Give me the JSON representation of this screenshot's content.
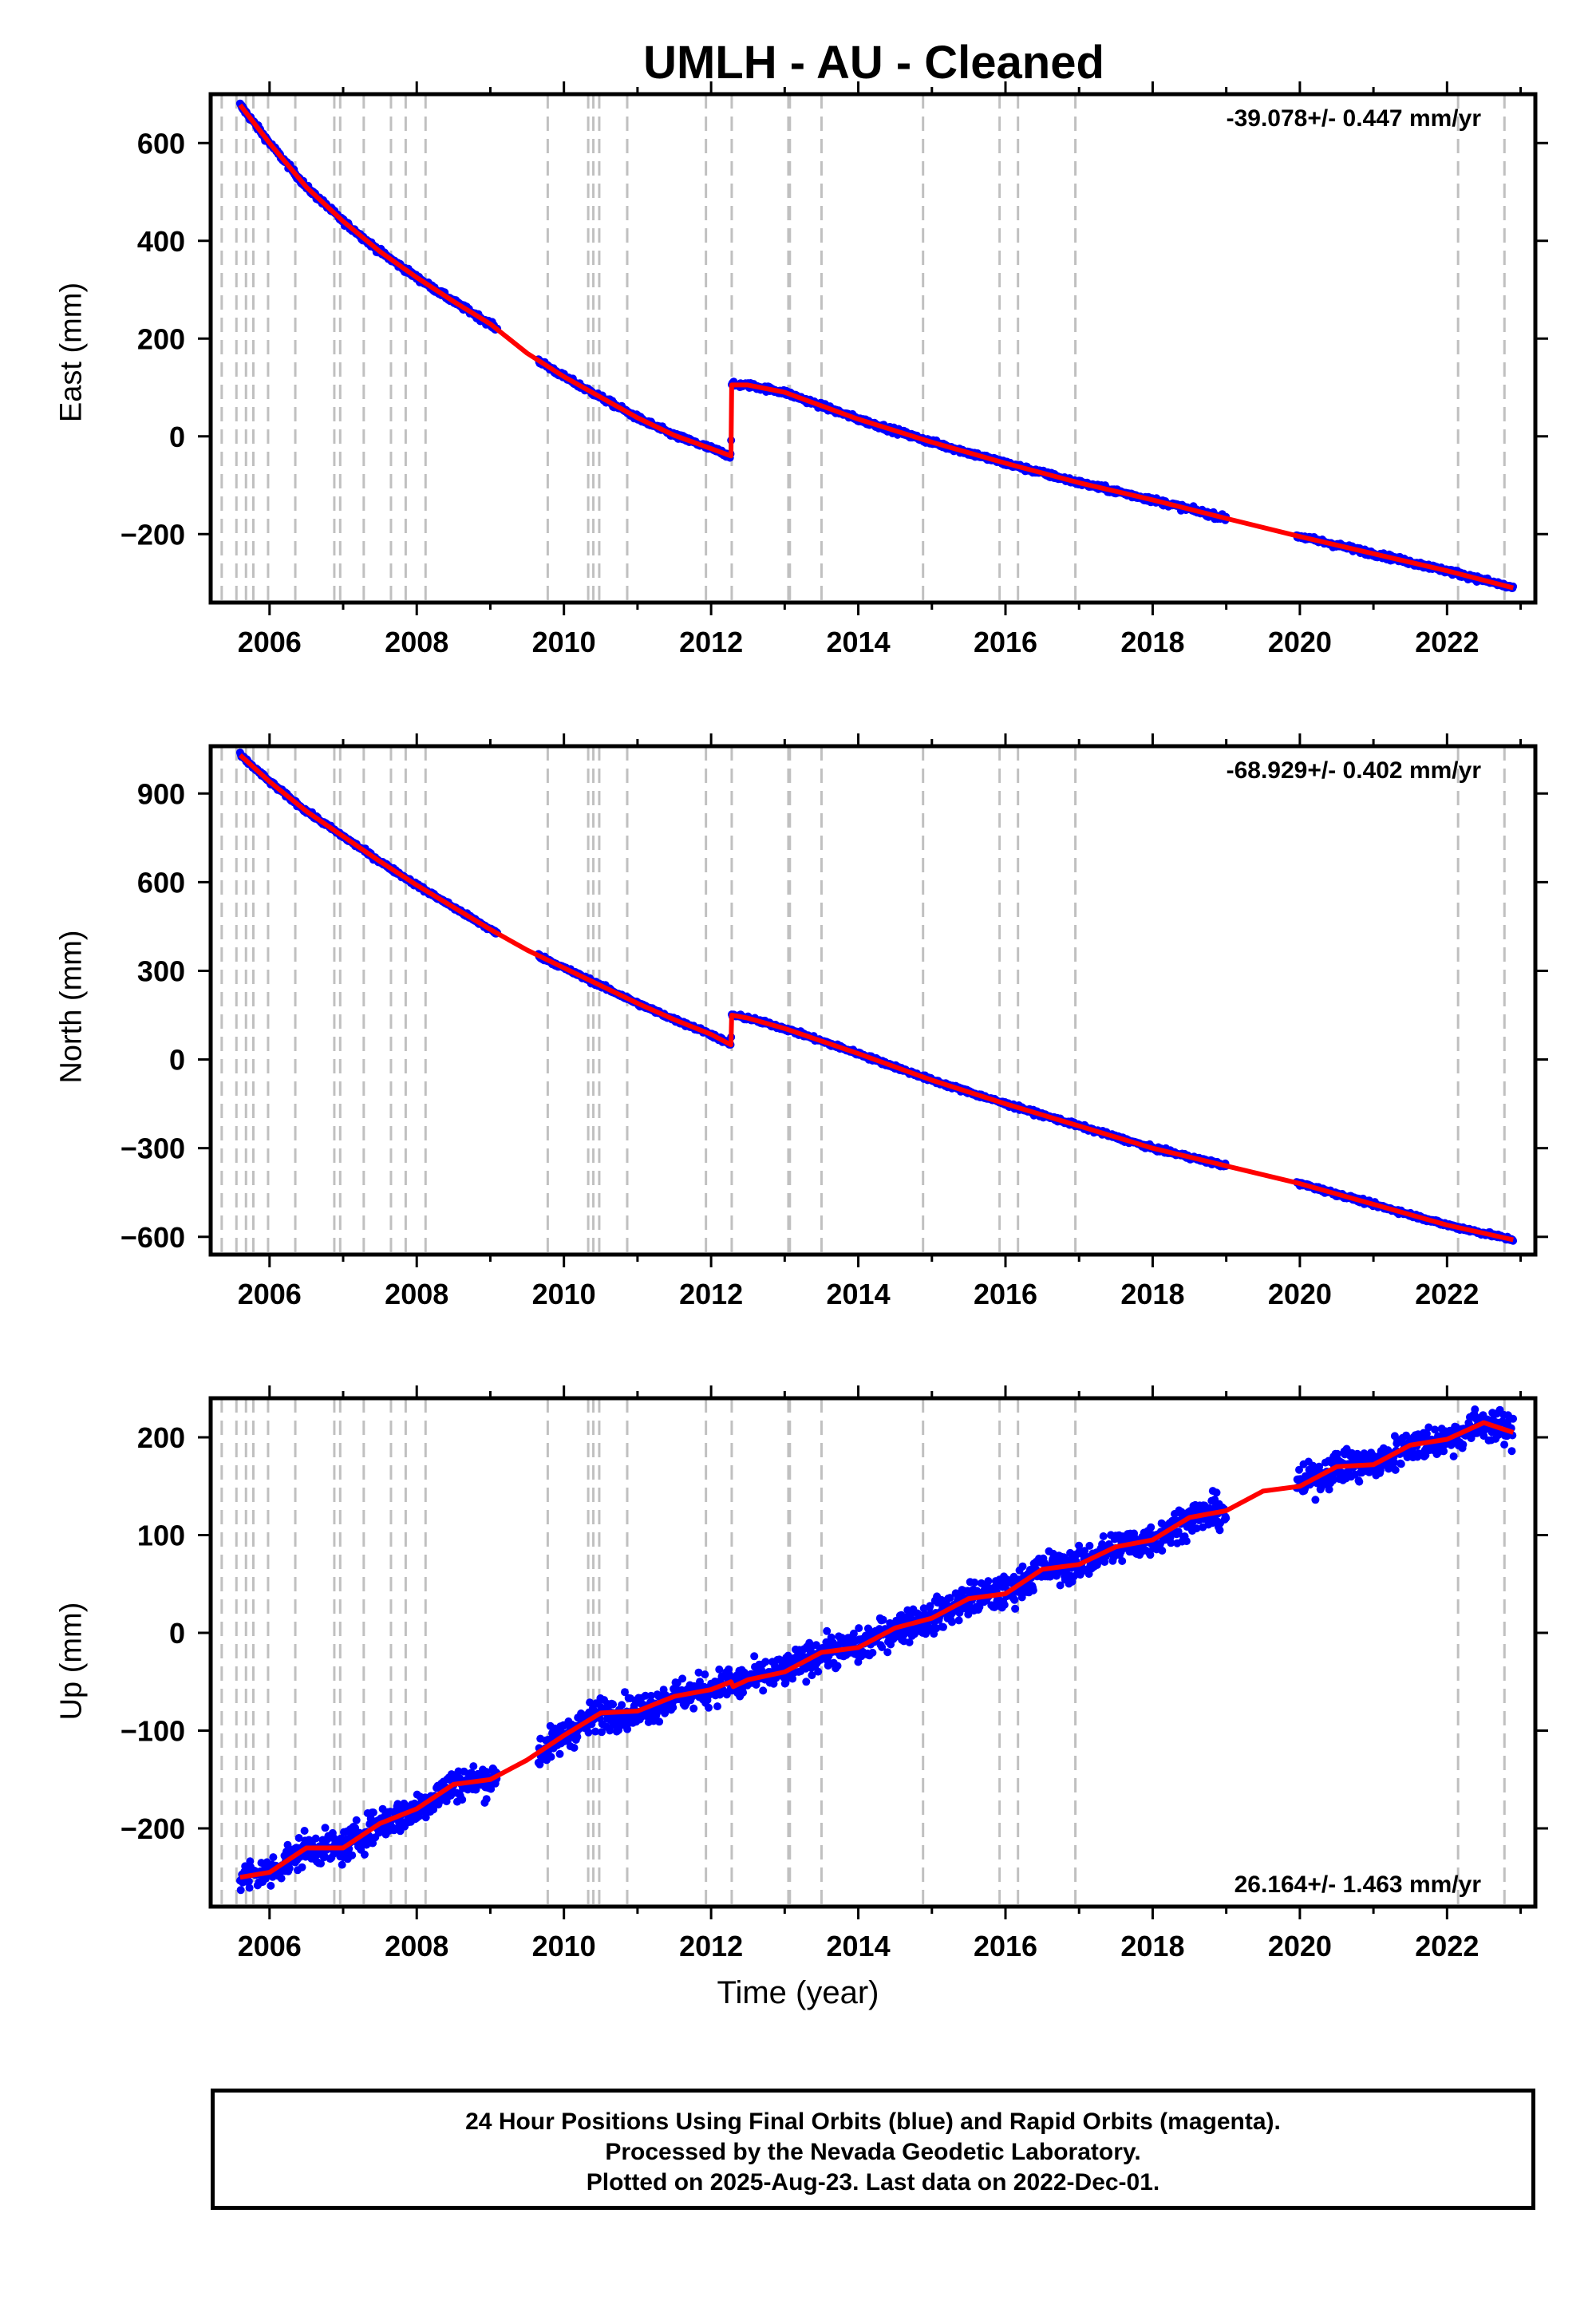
{
  "title": "UMLH  - AU - Cleaned",
  "footer": {
    "line1": "24 Hour Positions Using Final Orbits (blue) and Rapid Orbits (magenta).",
    "line2": "Processed by the Nevada Geodetic Laboratory.",
    "line3": "Plotted on 2025-Aug-23. Last data on 2022-Dec-01."
  },
  "colors": {
    "data": "#0000ff",
    "model": "#ff0000",
    "events": "#c0c0c0",
    "axis": "#000000"
  },
  "chart_data": [
    {
      "type": "scatter",
      "name": "east",
      "ylabel": "East (mm)",
      "xlabel": "",
      "rate_label": "-39.078+/- 0.447 mm/yr",
      "rate_position": "top-right",
      "xlim": [
        2005.2,
        2023.2
      ],
      "ylim": [
        -340,
        700
      ],
      "xticks": [
        2006,
        2008,
        2010,
        2012,
        2014,
        2016,
        2018,
        2020,
        2022
      ],
      "yticks": [
        -200,
        0,
        200,
        400,
        600
      ],
      "ytick_labels": [
        "−200",
        "0",
        "200",
        "400",
        "600"
      ],
      "noise": 4,
      "model": [
        [
          2005.6,
          678
        ],
        [
          2006.0,
          600
        ],
        [
          2006.5,
          510
        ],
        [
          2007.0,
          440
        ],
        [
          2007.5,
          378
        ],
        [
          2008.0,
          325
        ],
        [
          2008.5,
          276
        ],
        [
          2009.0,
          230
        ],
        [
          2009.5,
          170
        ],
        [
          2010.0,
          122
        ],
        [
          2010.5,
          80
        ],
        [
          2011.0,
          38
        ],
        [
          2011.5,
          2
        ],
        [
          2012.0,
          -25
        ],
        [
          2012.27,
          -40
        ],
        [
          2012.28,
          105
        ],
        [
          2012.5,
          105
        ],
        [
          2013.0,
          90
        ],
        [
          2014.0,
          35
        ],
        [
          2015.0,
          -12
        ],
        [
          2016.0,
          -55
        ],
        [
          2017.0,
          -95
        ],
        [
          2018.0,
          -130
        ],
        [
          2019.0,
          -168
        ],
        [
          2020.0,
          -205
        ],
        [
          2021.0,
          -240
        ],
        [
          2022.0,
          -275
        ],
        [
          2022.9,
          -310
        ]
      ],
      "gaps": [
        [
          2009.1,
          2009.65
        ],
        [
          2019.0,
          2019.95
        ]
      ]
    },
    {
      "type": "scatter",
      "name": "north",
      "ylabel": "North (mm)",
      "xlabel": "",
      "rate_label": "-68.929+/- 0.402 mm/yr",
      "rate_position": "top-right",
      "xlim": [
        2005.2,
        2023.2
      ],
      "ylim": [
        -660,
        1060
      ],
      "xticks": [
        2006,
        2008,
        2010,
        2012,
        2014,
        2016,
        2018,
        2020,
        2022
      ],
      "yticks": [
        -600,
        -300,
        0,
        300,
        600,
        900
      ],
      "ytick_labels": [
        "−600",
        "−300",
        "0",
        "300",
        "600",
        "900"
      ],
      "noise": 5,
      "model": [
        [
          2005.6,
          1030
        ],
        [
          2006.0,
          940
        ],
        [
          2006.5,
          840
        ],
        [
          2007.0,
          755
        ],
        [
          2007.5,
          670
        ],
        [
          2008.0,
          590
        ],
        [
          2008.5,
          515
        ],
        [
          2009.0,
          440
        ],
        [
          2009.5,
          370
        ],
        [
          2010.0,
          310
        ],
        [
          2010.5,
          250
        ],
        [
          2011.0,
          190
        ],
        [
          2011.5,
          135
        ],
        [
          2012.0,
          85
        ],
        [
          2012.27,
          50
        ],
        [
          2012.28,
          150
        ],
        [
          2012.5,
          140
        ],
        [
          2013.0,
          105
        ],
        [
          2014.0,
          20
        ],
        [
          2015.0,
          -70
        ],
        [
          2016.0,
          -150
        ],
        [
          2017.0,
          -225
        ],
        [
          2018.0,
          -300
        ],
        [
          2019.0,
          -360
        ],
        [
          2020.0,
          -420
        ],
        [
          2021.0,
          -490
        ],
        [
          2022.0,
          -560
        ],
        [
          2022.9,
          -610
        ]
      ],
      "gaps": [
        [
          2009.1,
          2009.65
        ],
        [
          2019.0,
          2019.95
        ]
      ]
    },
    {
      "type": "scatter",
      "name": "up",
      "ylabel": "Up (mm)",
      "xlabel": "Time (year)",
      "rate_label": "26.164+/- 1.463 mm/yr",
      "rate_position": "bottom-right",
      "xlim": [
        2005.2,
        2023.2
      ],
      "ylim": [
        -280,
        240
      ],
      "xticks": [
        2006,
        2008,
        2010,
        2012,
        2014,
        2016,
        2018,
        2020,
        2022
      ],
      "yticks": [
        -200,
        -100,
        0,
        100,
        200
      ],
      "ytick_labels": [
        "−200",
        "−100",
        "0",
        "100",
        "200"
      ],
      "noise": 12,
      "model": [
        [
          2005.6,
          -250
        ],
        [
          2006.0,
          -245
        ],
        [
          2006.5,
          -220
        ],
        [
          2007.0,
          -220
        ],
        [
          2007.5,
          -195
        ],
        [
          2008.0,
          -180
        ],
        [
          2008.5,
          -155
        ],
        [
          2009.0,
          -150
        ],
        [
          2009.5,
          -130
        ],
        [
          2009.8,
          -115
        ],
        [
          2010.0,
          -105
        ],
        [
          2010.5,
          -82
        ],
        [
          2011.0,
          -80
        ],
        [
          2011.5,
          -65
        ],
        [
          2012.0,
          -58
        ],
        [
          2012.27,
          -50
        ],
        [
          2012.3,
          -55
        ],
        [
          2012.5,
          -48
        ],
        [
          2013.0,
          -40
        ],
        [
          2013.5,
          -20
        ],
        [
          2014.0,
          -15
        ],
        [
          2014.5,
          5
        ],
        [
          2015.0,
          15
        ],
        [
          2015.5,
          35
        ],
        [
          2016.0,
          40
        ],
        [
          2016.5,
          65
        ],
        [
          2017.0,
          70
        ],
        [
          2017.5,
          88
        ],
        [
          2018.0,
          95
        ],
        [
          2018.5,
          118
        ],
        [
          2019.0,
          125
        ],
        [
          2019.5,
          145
        ],
        [
          2020.0,
          150
        ],
        [
          2020.5,
          170
        ],
        [
          2021.0,
          172
        ],
        [
          2021.5,
          192
        ],
        [
          2022.0,
          198
        ],
        [
          2022.5,
          215
        ],
        [
          2022.9,
          205
        ]
      ],
      "gaps": [
        [
          2009.1,
          2009.65
        ],
        [
          2019.0,
          2019.95
        ]
      ]
    }
  ],
  "event_lines": [
    2005.35,
    2005.55,
    2005.68,
    2005.78,
    2005.98,
    2006.35,
    2006.88,
    2006.96,
    2007.28,
    2007.65,
    2007.85,
    2008.12,
    2009.78,
    2010.33,
    2010.4,
    2010.48,
    2010.86,
    2011.93,
    2012.28,
    2013.05,
    2013.07,
    2013.5,
    2014.88,
    2015.92,
    2016.17,
    2016.95,
    2022.15,
    2022.78
  ]
}
